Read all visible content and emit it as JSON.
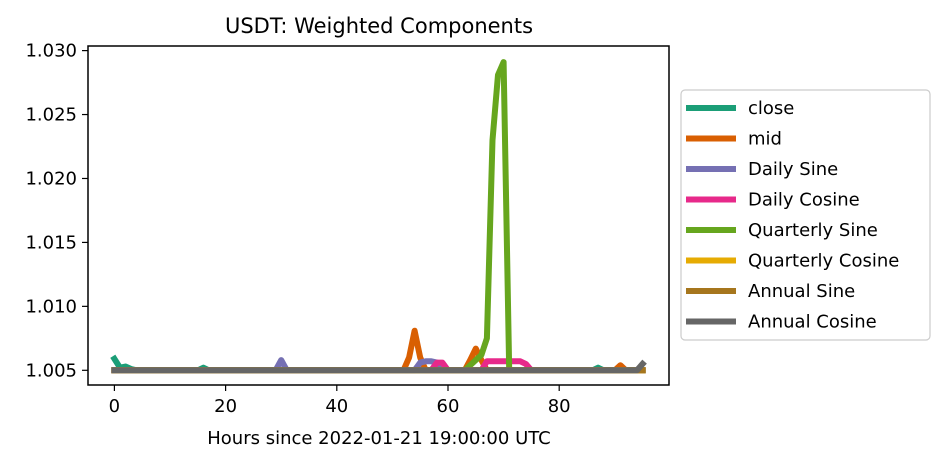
{
  "chart_data": {
    "type": "line",
    "title": "USDT: Weighted Components",
    "xlabel": "Hours since 2022-01-21 19:00:00 UTC",
    "ylabel": "",
    "xlim": [
      -4.75,
      99.75
    ],
    "ylim": [
      1.00385,
      1.03036
    ],
    "xticks": [
      0,
      20,
      40,
      60,
      80
    ],
    "xtick_labels": [
      "0",
      "20",
      "40",
      "60",
      "80"
    ],
    "yticks": [
      1.005,
      1.01,
      1.015,
      1.02,
      1.025,
      1.03
    ],
    "ytick_labels": [
      "1.005",
      "1.010",
      "1.015",
      "1.020",
      "1.025",
      "1.030"
    ],
    "grid": false,
    "legend_position": "outside-right",
    "series": [
      {
        "name": "close",
        "color": "#1b9e77",
        "points": [
          [
            0,
            1.0059
          ],
          [
            1,
            1.0052
          ],
          [
            2,
            1.0053
          ],
          [
            3,
            1.0051
          ],
          [
            4,
            1.005
          ],
          [
            15,
            1.005
          ],
          [
            16,
            1.0052
          ],
          [
            17,
            1.005
          ],
          [
            86,
            1.005
          ],
          [
            87,
            1.0052
          ],
          [
            88,
            1.005
          ],
          [
            95,
            1.005
          ]
        ]
      },
      {
        "name": "mid",
        "color": "#d95f02",
        "points": [
          [
            0,
            1.005
          ],
          [
            52,
            1.005
          ],
          [
            53,
            1.006
          ],
          [
            54,
            1.0081
          ],
          [
            55,
            1.006
          ],
          [
            56,
            1.005
          ],
          [
            63,
            1.005
          ],
          [
            64,
            1.0058
          ],
          [
            65,
            1.0067
          ],
          [
            66,
            1.0058
          ],
          [
            67,
            1.005
          ],
          [
            90,
            1.005
          ],
          [
            91,
            1.0054
          ],
          [
            92,
            1.005
          ],
          [
            95,
            1.005
          ]
        ]
      },
      {
        "name": "Daily Sine",
        "color": "#7570b3",
        "points": [
          [
            0,
            1.005
          ],
          [
            29,
            1.005
          ],
          [
            30,
            1.0058
          ],
          [
            31,
            1.005
          ],
          [
            54,
            1.005
          ],
          [
            55,
            1.0056
          ],
          [
            56,
            1.0057
          ],
          [
            57,
            1.0057
          ],
          [
            58,
            1.0056
          ],
          [
            59,
            1.005
          ],
          [
            95,
            1.005
          ]
        ]
      },
      {
        "name": "Daily Cosine",
        "color": "#e7298a",
        "points": [
          [
            0,
            1.005
          ],
          [
            57,
            1.005
          ],
          [
            58,
            1.0056
          ],
          [
            59,
            1.0056
          ],
          [
            60,
            1.005
          ],
          [
            66,
            1.005
          ],
          [
            67,
            1.0057
          ],
          [
            68,
            1.0057
          ],
          [
            69,
            1.0057
          ],
          [
            70,
            1.0057
          ],
          [
            71,
            1.0057
          ],
          [
            72,
            1.0057
          ],
          [
            73,
            1.0057
          ],
          [
            74,
            1.0055
          ],
          [
            75,
            1.005
          ],
          [
            95,
            1.005
          ]
        ]
      },
      {
        "name": "Quarterly Sine",
        "color": "#66a61e",
        "points": [
          [
            0,
            1.005
          ],
          [
            63,
            1.005
          ],
          [
            65,
            1.0058
          ],
          [
            66,
            1.0062
          ],
          [
            67,
            1.0075
          ],
          [
            68,
            1.023
          ],
          [
            69,
            1.0281
          ],
          [
            70,
            1.0291
          ],
          [
            71,
            1.005
          ],
          [
            95,
            1.005
          ]
        ]
      },
      {
        "name": "Quarterly Cosine",
        "color": "#e6ab02",
        "points": [
          [
            0,
            1.005
          ],
          [
            95,
            1.005
          ]
        ]
      },
      {
        "name": "Annual Sine",
        "color": "#a6761d",
        "points": [
          [
            0,
            1.005
          ],
          [
            95,
            1.005
          ]
        ]
      },
      {
        "name": "Annual Cosine",
        "color": "#666666",
        "points": [
          [
            0,
            1.005
          ],
          [
            94,
            1.005
          ],
          [
            95,
            1.0055
          ]
        ]
      }
    ]
  }
}
